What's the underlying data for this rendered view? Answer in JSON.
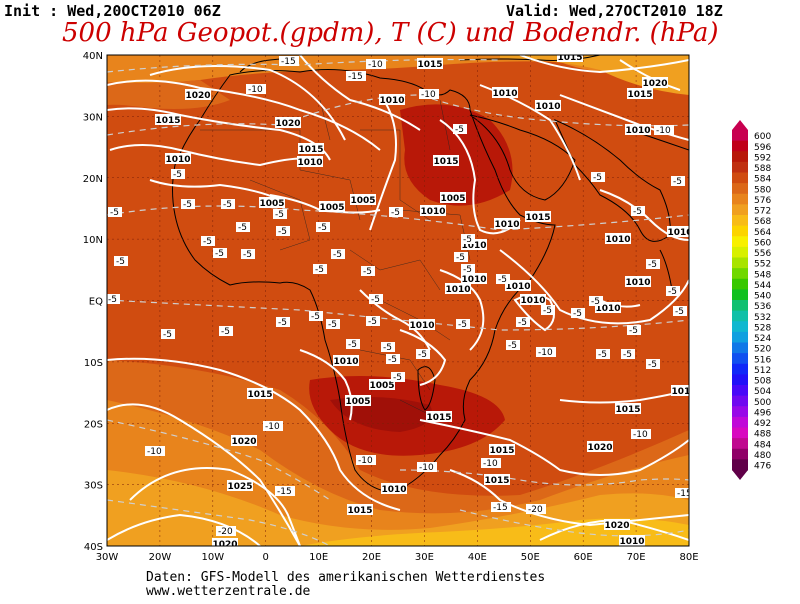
{
  "header": {
    "init": "Init : Wed,20OCT2010 06Z",
    "valid": "Valid: Wed,27OCT2010 18Z",
    "title": "500 hPa Geopot.(gpdm), T (C) und Bodendr. (hPa)"
  },
  "axes": {
    "lat_labels": [
      "40N",
      "30N",
      "20N",
      "10N",
      "EQ",
      "10S",
      "20S",
      "30S",
      "40S"
    ],
    "lon_labels": [
      "30W",
      "20W",
      "10W",
      "0",
      "10E",
      "20E",
      "30E",
      "40E",
      "50E",
      "60E",
      "70E",
      "80E"
    ]
  },
  "colorbar": {
    "values": [
      "600",
      "596",
      "592",
      "588",
      "584",
      "580",
      "576",
      "572",
      "568",
      "564",
      "560",
      "556",
      "552",
      "548",
      "544",
      "540",
      "536",
      "532",
      "528",
      "524",
      "520",
      "516",
      "512",
      "508",
      "504",
      "500",
      "496",
      "492",
      "488",
      "484",
      "480",
      "476"
    ],
    "colors": [
      "#c80050",
      "#c00018",
      "#b81808",
      "#c03010",
      "#d04c10",
      "#dc6818",
      "#e8841c",
      "#f0a020",
      "#f8bc18",
      "#fcd400",
      "#f8f000",
      "#d8f000",
      "#a8e400",
      "#70d800",
      "#38c800",
      "#10c020",
      "#10c070",
      "#10c0a8",
      "#10b8d0",
      "#10a0e0",
      "#1078e8",
      "#1050f0",
      "#1028f8",
      "#2010f8",
      "#4808f8",
      "#7008f0",
      "#9808e8",
      "#c008d8",
      "#d808c0",
      "#c00890",
      "#900068",
      "#600048"
    ]
  },
  "map": {
    "pressure_labels": [
      "1015",
      "1015",
      "1020",
      "1020",
      "1015",
      "1010",
      "1010",
      "1010",
      "1010",
      "1015",
      "1020",
      "1010",
      "1015",
      "1010",
      "1005",
      "1005",
      "1005",
      "1005",
      "1010",
      "1010",
      "1015",
      "1010",
      "1010",
      "1010",
      "1010",
      "1010",
      "1010",
      "1010",
      "1010",
      "1010",
      "1005",
      "1005",
      "1015",
      "1015",
      "1015",
      "1010",
      "1015",
      "1020",
      "1020",
      "1025",
      "1015",
      "1010",
      "1015",
      "1020",
      "1015",
      "1010",
      "1010",
      "1020",
      "1015"
    ],
    "temp_labels": [
      "-5",
      "-10",
      "-15",
      "-20"
    ]
  },
  "footer": {
    "line1": "Daten: GFS-Modell des amerikanischen Wetterdienstes",
    "line2": "www.wetterzentrale.de"
  }
}
